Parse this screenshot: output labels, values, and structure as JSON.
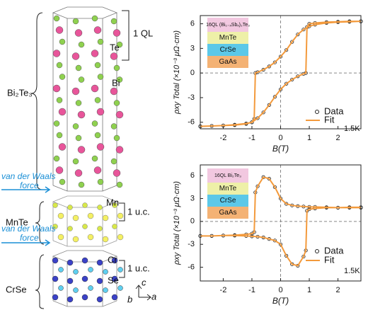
{
  "diagram": {
    "bi2te3": "Bi₂Te₃",
    "one_ql": "1 QL",
    "te": "Te",
    "bi": "Bi",
    "vdw_1": [
      "van der Waals",
      "force"
    ],
    "vdw_2": [
      "van der Waals",
      "force"
    ],
    "mnte": "MnTe",
    "mn": "Mn",
    "uc_1": "1 u.c.",
    "crse": "CrSe",
    "cr": "Cr",
    "se": "Se",
    "uc_2": "1 u.c.",
    "axis_b": "b",
    "axis_c": "c",
    "axis_a": "a"
  },
  "chart_data": [
    {
      "type": "line",
      "ylabel": "ρxy Total (×10⁻³ μΩ·cm)",
      "xlabel": "B(T)",
      "annotation": "1.5K",
      "legend": "lower right",
      "zero_lines": true,
      "xlim": [
        -2.8,
        2.8
      ],
      "xticks": [
        -2,
        -1,
        0,
        1,
        2
      ],
      "ylim": [
        -6.8,
        7
      ],
      "yticks": [
        -6,
        -3,
        0,
        3,
        6
      ],
      "inset_layers": [
        {
          "label": "16QL (Bi₁₋ₓSbₓ)₂Te₃",
          "color": "#f2c8e0"
        },
        {
          "label": "MnTe",
          "color": "#eef0a8"
        },
        {
          "label": "CrSe",
          "color": "#5cc8e8"
        },
        {
          "label": "GaAs",
          "color": "#f4b274"
        }
      ],
      "x": [
        2.8,
        2.4,
        2.0,
        1.6,
        1.2,
        1.0,
        0.8,
        0.6,
        0.4,
        0.2,
        0,
        -0.2,
        -0.4,
        -0.6,
        -0.8,
        -0.88,
        -0.92,
        -1.0,
        -1.2,
        -1.6,
        -2.0,
        -2.4,
        -2.8,
        -2.8,
        -2.4,
        -2.0,
        -1.6,
        -1.2,
        -1.0,
        -0.8,
        -0.6,
        -0.4,
        -0.2,
        0,
        0.2,
        0.4,
        0.6,
        0.8,
        0.88,
        0.92,
        1.0,
        1.2,
        1.6,
        2.0,
        2.4,
        2.8
      ],
      "series": [
        {
          "name": "Data",
          "style": "markers",
          "color": "#222222",
          "values": [
            6.3,
            6.25,
            6.2,
            6.1,
            5.9,
            5.7,
            5.3,
            4.7,
            3.8,
            2.8,
            2.0,
            1.3,
            0.8,
            0.4,
            0.1,
            0.0,
            -5.6,
            -6.0,
            -6.2,
            -6.35,
            -6.4,
            -6.45,
            -6.5,
            -6.5,
            -6.45,
            -6.4,
            -6.3,
            -6.15,
            -6.0,
            -5.5,
            -4.8,
            -3.9,
            -2.9,
            -2.0,
            -1.3,
            -0.8,
            -0.4,
            -0.1,
            0.0,
            5.6,
            6.0,
            6.1,
            6.2,
            6.25,
            6.3,
            6.3
          ]
        },
        {
          "name": "Fit",
          "style": "line",
          "color": "#f39a3c",
          "values": [
            6.3,
            6.25,
            6.2,
            6.1,
            5.9,
            5.7,
            5.3,
            4.7,
            3.8,
            2.8,
            2.0,
            1.3,
            0.8,
            0.4,
            0.1,
            0.0,
            -5.6,
            -6.0,
            -6.2,
            -6.35,
            -6.4,
            -6.45,
            -6.5,
            -6.5,
            -6.45,
            -6.4,
            -6.3,
            -6.15,
            -6.0,
            -5.5,
            -4.8,
            -3.9,
            -2.9,
            -2.0,
            -1.3,
            -0.8,
            -0.4,
            -0.1,
            0.0,
            5.6,
            6.0,
            6.1,
            6.2,
            6.25,
            6.3,
            6.3
          ]
        }
      ]
    },
    {
      "type": "line",
      "ylabel": "ρxy Total (×10⁻³ μΩ·cm)",
      "xlabel": "B(T)",
      "annotation": "1.5K",
      "legend": "lower right",
      "zero_lines": true,
      "xlim": [
        -2.8,
        2.8
      ],
      "xticks": [
        -2,
        -1,
        0,
        1,
        2
      ],
      "ylim": [
        -7.8,
        7.4
      ],
      "yticks": [
        -6,
        -3,
        0,
        3,
        6
      ],
      "inset_layers": [
        {
          "label": "16QL Bi₂Te₃",
          "color": "#f2c8e0"
        },
        {
          "label": "MnTe",
          "color": "#eef0a8"
        },
        {
          "label": "CrSe",
          "color": "#5cc8e8"
        },
        {
          "label": "GaAs",
          "color": "#f4b274"
        }
      ],
      "x": [
        2.8,
        2.4,
        2.0,
        1.6,
        1.2,
        1.0,
        0.8,
        0.6,
        0.4,
        0.2,
        0,
        -0.2,
        -0.4,
        -0.6,
        -0.8,
        -0.88,
        -0.92,
        -1.0,
        -1.2,
        -1.6,
        -2.0,
        -2.4,
        -2.8,
        -2.8,
        -2.4,
        -2.0,
        -1.6,
        -1.2,
        -1.0,
        -0.8,
        -0.6,
        -0.4,
        -0.2,
        0,
        0.2,
        0.4,
        0.6,
        0.8,
        0.88,
        0.92,
        1.0,
        1.2,
        1.6,
        2.0,
        2.4,
        2.8
      ],
      "series": [
        {
          "name": "Data",
          "style": "markers",
          "color": "#222222",
          "values": [
            1.8,
            1.8,
            1.8,
            1.85,
            1.9,
            1.9,
            1.95,
            2.0,
            2.1,
            2.3,
            3.0,
            4.5,
            5.6,
            5.8,
            4.6,
            3.8,
            -1.4,
            -1.6,
            -1.7,
            -1.8,
            -1.85,
            -1.9,
            -1.9,
            -1.9,
            -1.9,
            -1.85,
            -1.85,
            -1.9,
            -1.95,
            -2.0,
            -2.1,
            -2.3,
            -2.5,
            -3.0,
            -4.5,
            -5.6,
            -5.8,
            -4.6,
            -3.8,
            1.4,
            1.6,
            1.7,
            1.8,
            1.8,
            1.85,
            1.85
          ]
        },
        {
          "name": "Fit",
          "style": "line",
          "color": "#f39a3c",
          "values": [
            1.8,
            1.8,
            1.8,
            1.85,
            1.9,
            1.9,
            1.95,
            2.0,
            2.1,
            2.3,
            3.0,
            4.5,
            5.6,
            5.8,
            4.6,
            3.8,
            -1.4,
            -1.6,
            -1.7,
            -1.8,
            -1.85,
            -1.9,
            -1.9,
            -1.9,
            -1.9,
            -1.85,
            -1.85,
            -1.9,
            -1.95,
            -2.0,
            -2.1,
            -2.3,
            -2.5,
            -3.0,
            -4.5,
            -5.6,
            -5.8,
            -4.6,
            -3.8,
            1.4,
            1.6,
            1.7,
            1.8,
            1.8,
            1.85,
            1.85
          ]
        }
      ]
    }
  ]
}
